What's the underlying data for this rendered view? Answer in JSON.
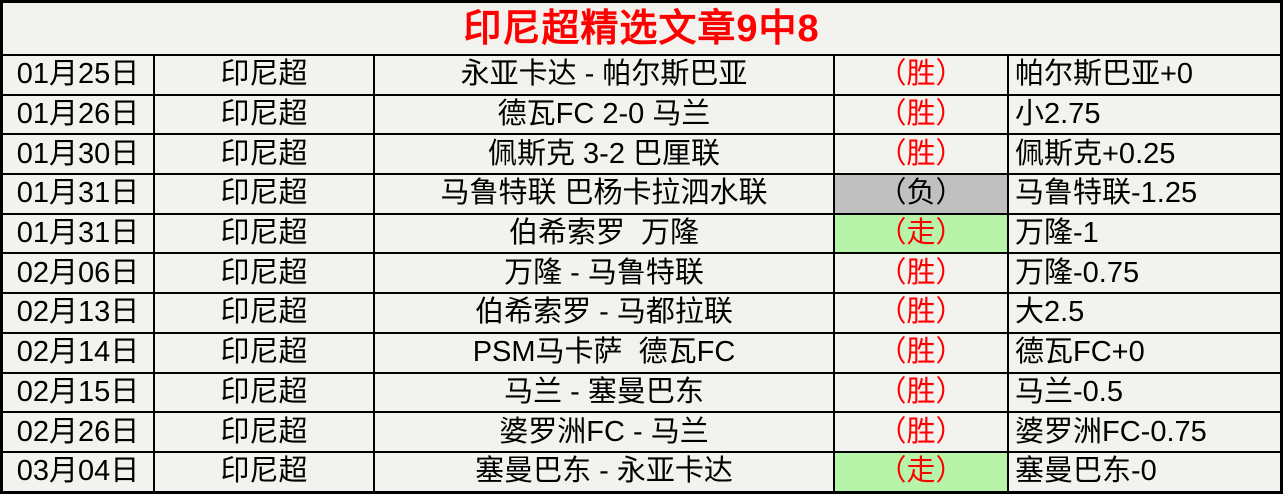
{
  "header": {
    "title": "印尼超精选文章9中8"
  },
  "colors": {
    "page_bg": "#f2f2ee",
    "border": "#000000",
    "title_text": "#ff0000",
    "win_text": "#ff0000",
    "lose_text": "#000000",
    "push_text": "#ff0000",
    "lose_bg": "#c0c0c0",
    "push_bg": "#b7f4aa"
  },
  "table": {
    "rows": [
      {
        "date": "01月25日",
        "league": "印尼超",
        "match": "永亚卡达 - 帕尔斯巴亚",
        "result": "（胜）",
        "result_type": "win",
        "pick": "帕尔斯巴亚+0"
      },
      {
        "date": "01月26日",
        "league": "印尼超",
        "match": "德瓦FC 2-0 马兰",
        "result": "（胜）",
        "result_type": "win",
        "pick": "小2.75"
      },
      {
        "date": "01月30日",
        "league": "印尼超",
        "match": "佩斯克 3-2 巴厘联",
        "result": "（胜）",
        "result_type": "win",
        "pick": "佩斯克+0.25"
      },
      {
        "date": "01月31日",
        "league": "印尼超",
        "match": "马鲁特联 巴杨卡拉泗水联",
        "result": "（负）",
        "result_type": "lose",
        "pick": "马鲁特联-1.25"
      },
      {
        "date": "01月31日",
        "league": "印尼超",
        "match": "伯希索罗  万隆",
        "result": "（走）",
        "result_type": "push",
        "pick": "万隆-1"
      },
      {
        "date": "02月06日",
        "league": "印尼超",
        "match": "万隆 - 马鲁特联",
        "result": "（胜）",
        "result_type": "win",
        "pick": "万隆-0.75"
      },
      {
        "date": "02月13日",
        "league": "印尼超",
        "match": "伯希索罗 - 马都拉联",
        "result": "（胜）",
        "result_type": "win",
        "pick": "大2.5"
      },
      {
        "date": "02月14日",
        "league": "印尼超",
        "match": "PSM马卡萨  德瓦FC",
        "result": "（胜）",
        "result_type": "win",
        "pick": "德瓦FC+0"
      },
      {
        "date": "02月15日",
        "league": "印尼超",
        "match": "马兰 - 塞曼巴东",
        "result": "（胜）",
        "result_type": "win",
        "pick": "马兰-0.5"
      },
      {
        "date": "02月26日",
        "league": "印尼超",
        "match": "婆罗洲FC - 马兰",
        "result": "（胜）",
        "result_type": "win",
        "pick": "婆罗洲FC-0.75"
      },
      {
        "date": "03月04日",
        "league": "印尼超",
        "match": "塞曼巴东 - 永亚卡达",
        "result": "（走）",
        "result_type": "push",
        "pick": "塞曼巴东-0"
      }
    ]
  }
}
